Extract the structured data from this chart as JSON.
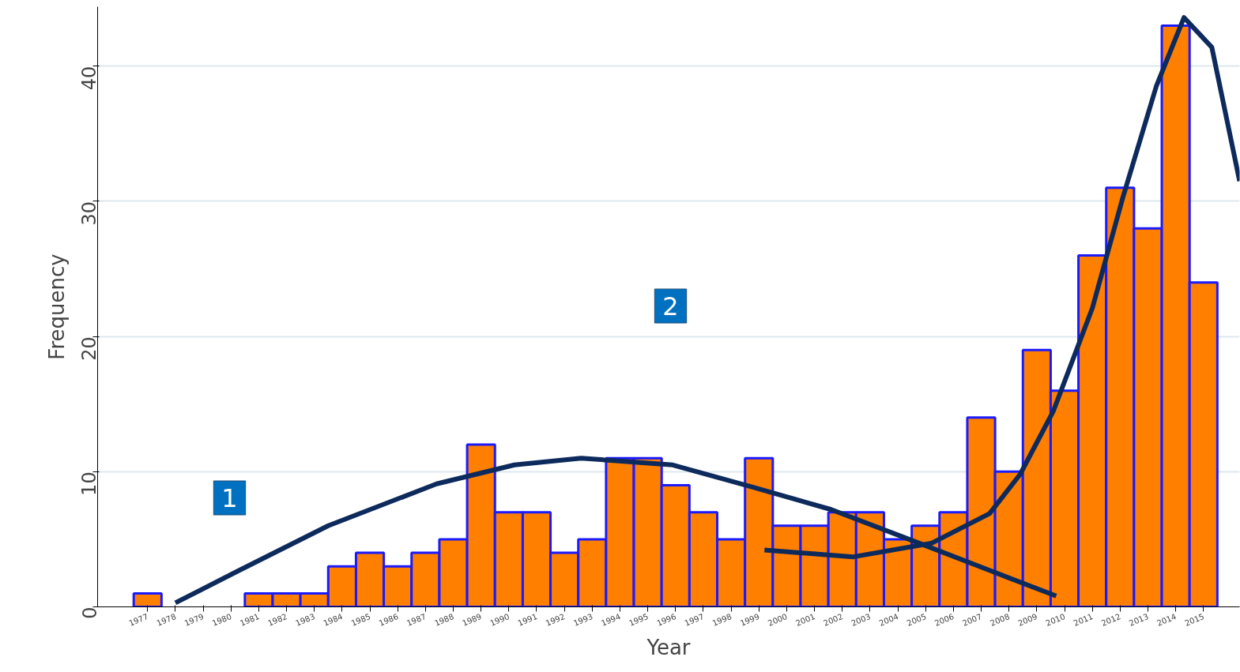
{
  "chart_data": {
    "type": "bar",
    "xlabel": "Year",
    "ylabel": "Frequency",
    "x": [
      1977,
      1978,
      1979,
      1980,
      1981,
      1982,
      1983,
      1984,
      1985,
      1986,
      1987,
      1988,
      1989,
      1990,
      1991,
      1992,
      1993,
      1994,
      1995,
      1996,
      1997,
      1998,
      1999,
      2000,
      2001,
      2002,
      2003,
      2004,
      2005,
      2006,
      2007,
      2008,
      2009,
      2010,
      2011,
      2012,
      2013,
      2014,
      2015
    ],
    "xlim": [
      1975.2,
      2016.3
    ],
    "xticks": [
      1977,
      1978,
      1979,
      1980,
      1981,
      1982,
      1983,
      1984,
      1985,
      1986,
      1987,
      1988,
      1989,
      1990,
      1991,
      1992,
      1993,
      1994,
      1995,
      1996,
      1997,
      1998,
      1999,
      2000,
      2001,
      2002,
      2003,
      2004,
      2005,
      2006,
      2007,
      2008,
      2009,
      2010,
      2011,
      2012,
      2013,
      2014,
      2015
    ],
    "ylim": [
      0,
      44.4
    ],
    "yticks": [
      0,
      10,
      20,
      30,
      40
    ],
    "grid": "y",
    "series": [
      {
        "color": "#ff7f00",
        "values": [
          1,
          0,
          0,
          0,
          1,
          1,
          1,
          3,
          4,
          3,
          4,
          5,
          12,
          7,
          7,
          4,
          5,
          11,
          11,
          9,
          7,
          5,
          11,
          6,
          6,
          7,
          7,
          5,
          6,
          7,
          14,
          10,
          19,
          16,
          26,
          31,
          28,
          43,
          24
        ]
      },
      {
        "type": "line",
        "color": "#0d2a5c",
        "x": [
          1978,
          1980.2,
          1983.5,
          1987.4,
          1990.2,
          1992.6,
          1995.9,
          1998.7,
          2001.6,
          2004.4,
          2007.3,
          2009.7
        ],
        "values": [
          0.3,
          2.6,
          6.0,
          9.1,
          10.5,
          11.0,
          10.5,
          8.9,
          7.2,
          5.0,
          2.7,
          0.8
        ]
      },
      {
        "type": "line",
        "color": "#0d2a5c",
        "x": [
          1999.2,
          2002.4,
          2005.2,
          2007.3,
          2008.4,
          2009.6,
          2011,
          2012.1,
          2013.3,
          2014.3,
          2015.3,
          2016.3
        ],
        "values": [
          4.2,
          3.7,
          4.7,
          6.9,
          9.8,
          14.5,
          22.1,
          30.3,
          38.5,
          43.6,
          41.4,
          31.5
        ]
      }
    ],
    "annotations": [
      "1",
      "2"
    ]
  }
}
